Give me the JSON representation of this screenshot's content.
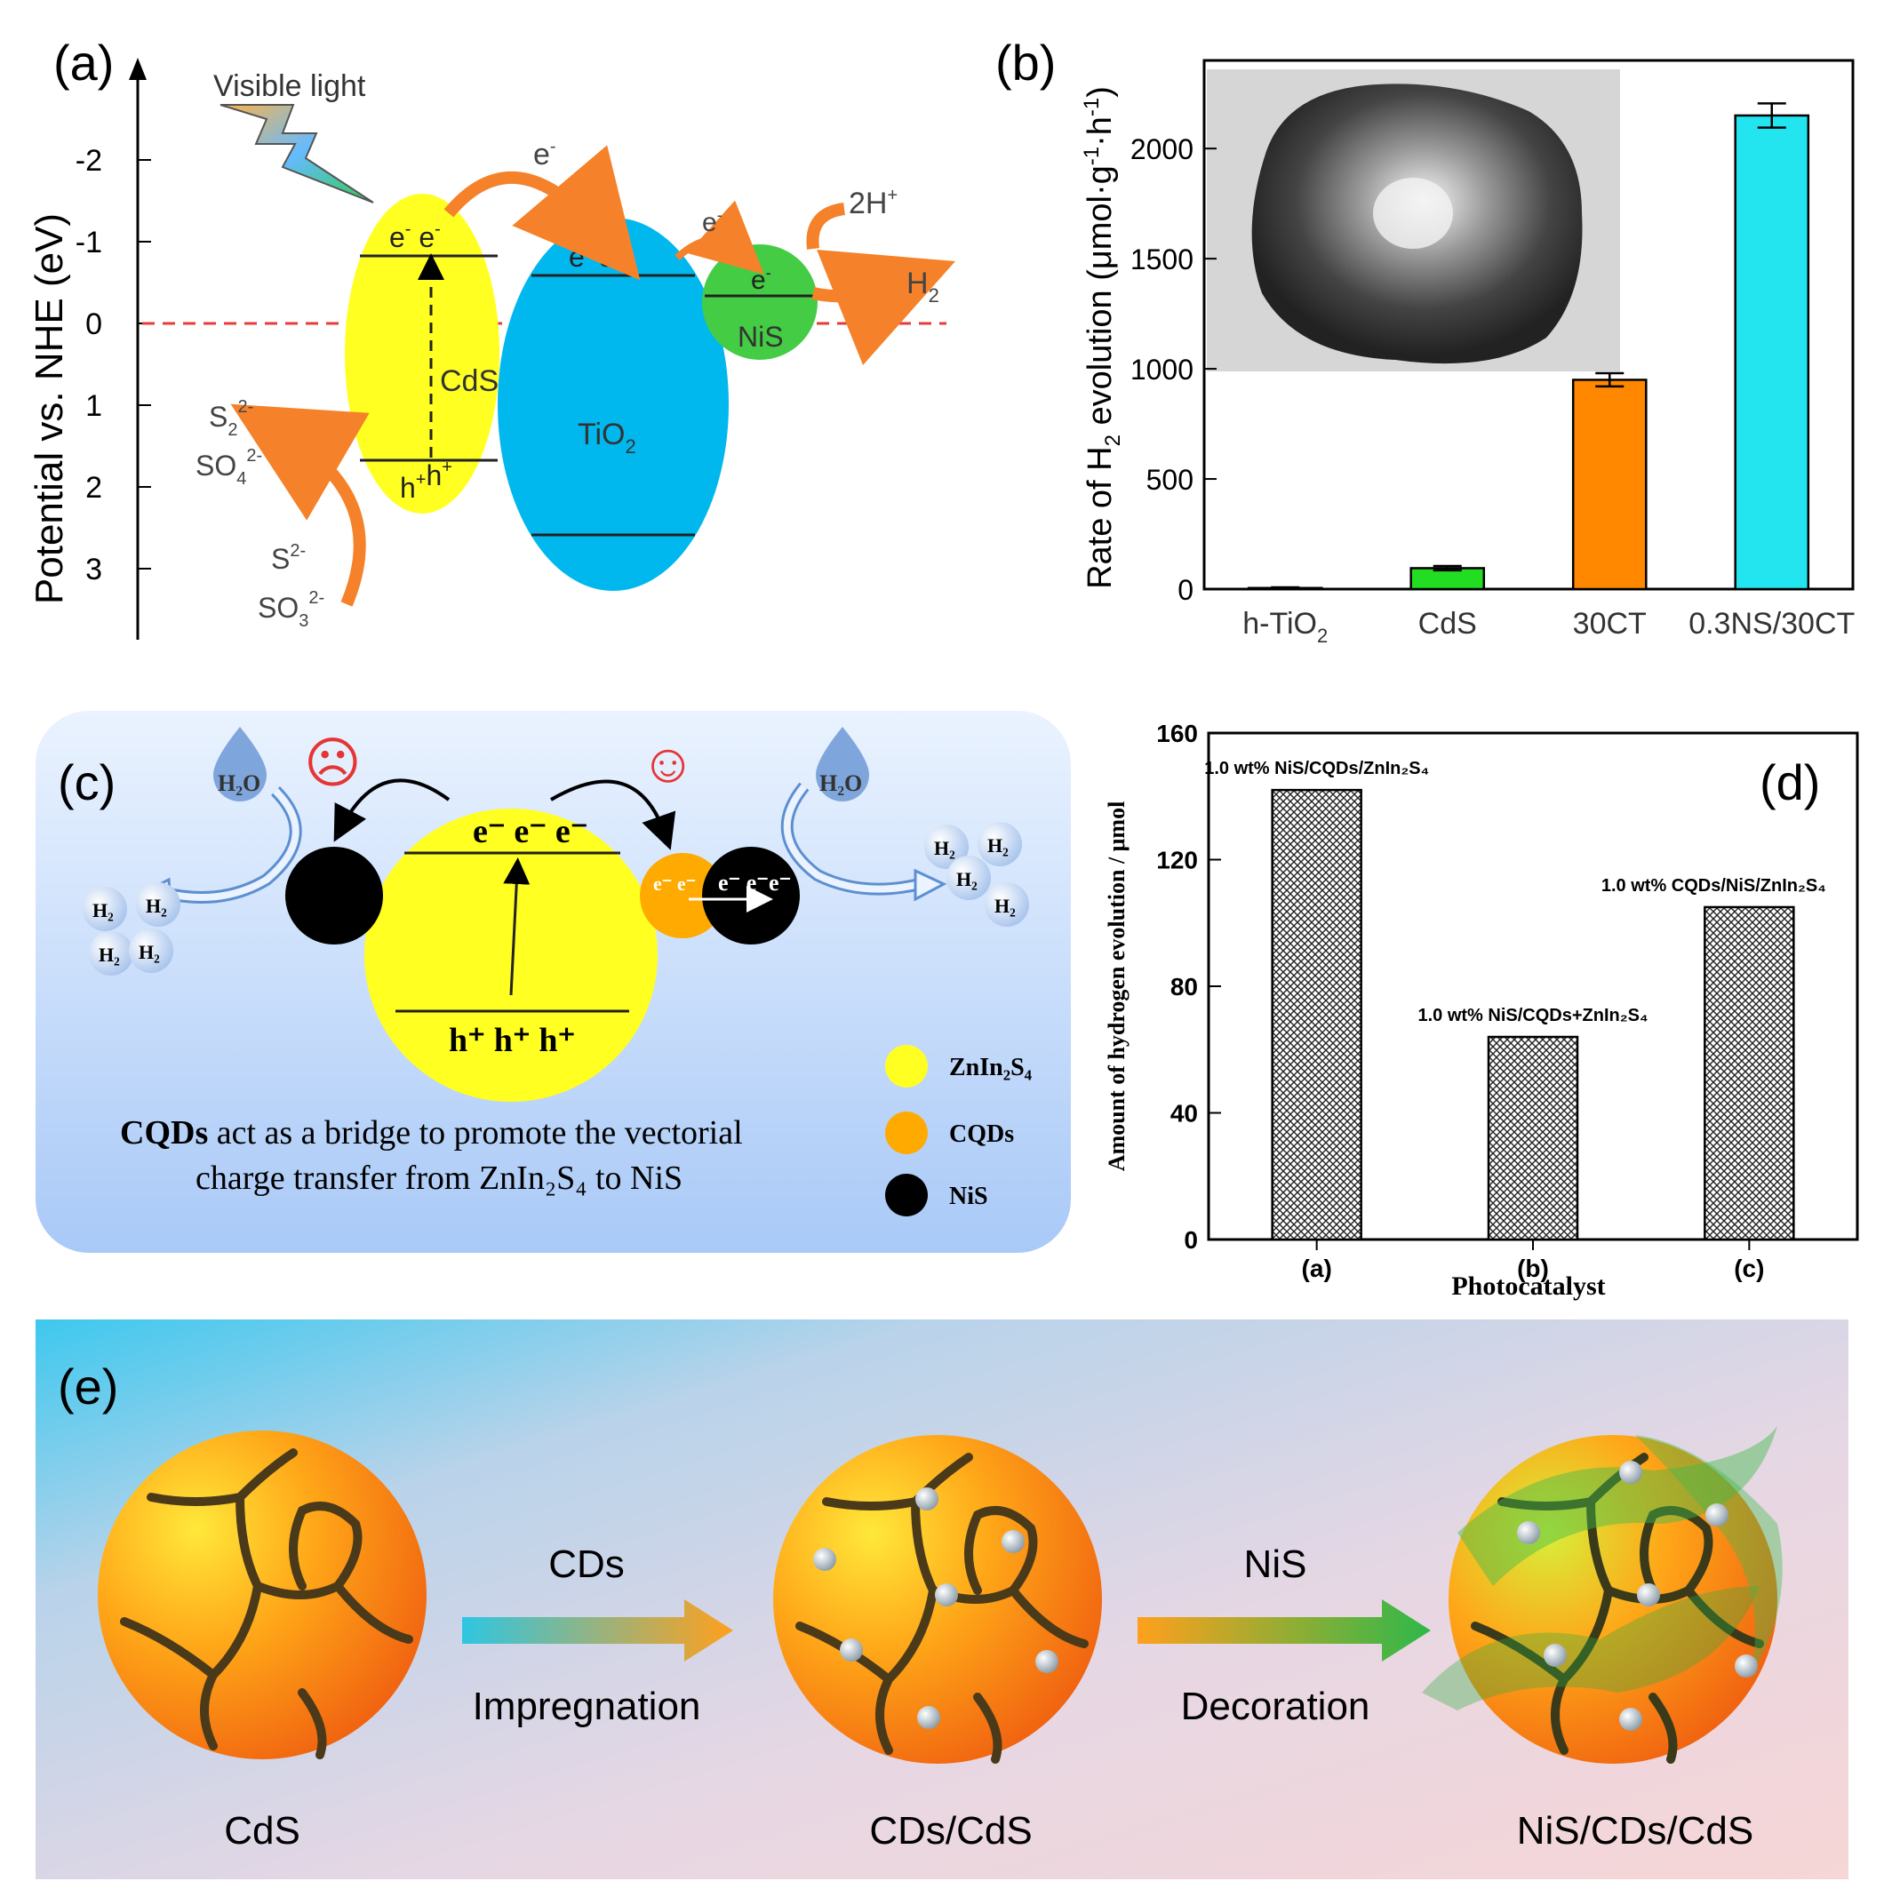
{
  "panel_a": {
    "label": "(a)",
    "y_axis_title": "Potential vs. NHE (eV)",
    "ticks": [
      "-2",
      "-1",
      "0",
      "1",
      "2",
      "3"
    ],
    "light_label": "Visible light",
    "cds_label": "CdS",
    "tio2_label": "TiO",
    "tio2_sub": "2",
    "nis_label": "NiS",
    "e": "e",
    "minus": "-",
    "h": "h",
    "plus": "+",
    "two_h_plus": "2H",
    "h2": "H",
    "h2_sub": "2",
    "s2_2": "S",
    "so4": "SO",
    "s2": "S",
    "so3": "SO",
    "sub2": "2",
    "sub3": "3",
    "sub4": "4",
    "sup_2minus": "2-",
    "colors": {
      "cds": "#ffff22",
      "tio2": "#00b8ee",
      "nis": "#44cc44",
      "arrow": "#f5822a",
      "dash": "#e83a3a"
    }
  },
  "panel_b": {
    "label": "(b)",
    "chart_data": {
      "type": "bar",
      "title": "",
      "ylabel": "Rate of H2 evolution (μmol·g-1·h-1)",
      "ylabel_parts": {
        "a": "Rate of H",
        "sub": "2",
        "b": " evolution (μmol·g",
        "sup1": "-1",
        "c": "·h",
        "sup2": "-1",
        "d": ")"
      },
      "categories": [
        "h-TiO2",
        "CdS",
        "30CT",
        "0.3NS/30CT"
      ],
      "category_labels": [
        {
          "main": "h-TiO",
          "sub": "2"
        },
        {
          "main": "CdS",
          "sub": ""
        },
        {
          "main": "30CT",
          "sub": ""
        },
        {
          "main": "0.3NS/30CT",
          "sub": ""
        }
      ],
      "values": [
        5,
        95,
        950,
        2150
      ],
      "errors": [
        3,
        10,
        30,
        55
      ],
      "colors": [
        "#00cc00",
        "#22dd22",
        "#ff8800",
        "#22e5f0"
      ],
      "ylim": [
        0,
        2400
      ],
      "yticks": [
        "0",
        "500",
        "1000",
        "1500",
        "2000"
      ],
      "ytick_values": [
        0,
        500,
        1000,
        1500,
        2000
      ]
    }
  },
  "panel_c": {
    "label": "(c)",
    "h2o_left": "H₂O",
    "h2o_right": "H₂O",
    "h2": "H₂",
    "electrons_top": "e⁻ e⁻ e⁻",
    "holes_bottom": "h⁺ h⁺ h⁺",
    "cqd_electrons": "e⁻ e⁻",
    "nis_electrons": "e⁻ e⁻e⁻",
    "legend": [
      {
        "label": "ZnIn₂S₄",
        "color": "#ffff22"
      },
      {
        "label": "CQDs",
        "color": "#ffaa00"
      },
      {
        "label": "NiS",
        "color": "#000000"
      }
    ],
    "caption_bold": "CQDs",
    "caption_rest": " act as a bridge to promote the vectorial",
    "caption_line2": "charge transfer from ZnIn₂S₄ to NiS",
    "sad": "☹",
    "happy": "☺"
  },
  "panel_d": {
    "label": "(d)",
    "chart_data": {
      "type": "bar",
      "title": "",
      "xlabel": "Photocatalyst",
      "ylabel": "Amount of hydrogen evolution / μmol",
      "categories": [
        "(a)",
        "(b)",
        "(c)"
      ],
      "values": [
        142,
        64,
        105
      ],
      "bar_labels": [
        "1.0 wt% NiS/CQDs/ZnIn₂S₄",
        "1.0 wt% NiS/CQDs+ZnIn₂S₄",
        "1.0 wt% CQDs/NiS/ZnIn₂S₄"
      ],
      "ylim": [
        0,
        160
      ],
      "yticks": [
        "0",
        "40",
        "80",
        "120",
        "160"
      ],
      "ytick_values": [
        0,
        40,
        80,
        120,
        160
      ]
    }
  },
  "panel_e": {
    "label": "(e)",
    "step1_top": "CDs",
    "step1_bottom": "Impregnation",
    "step2_top": "NiS",
    "step2_bottom": "Decoration",
    "stage1": "CdS",
    "stage2": "CDs/CdS",
    "stage3": "NiS/CDs/CdS"
  }
}
